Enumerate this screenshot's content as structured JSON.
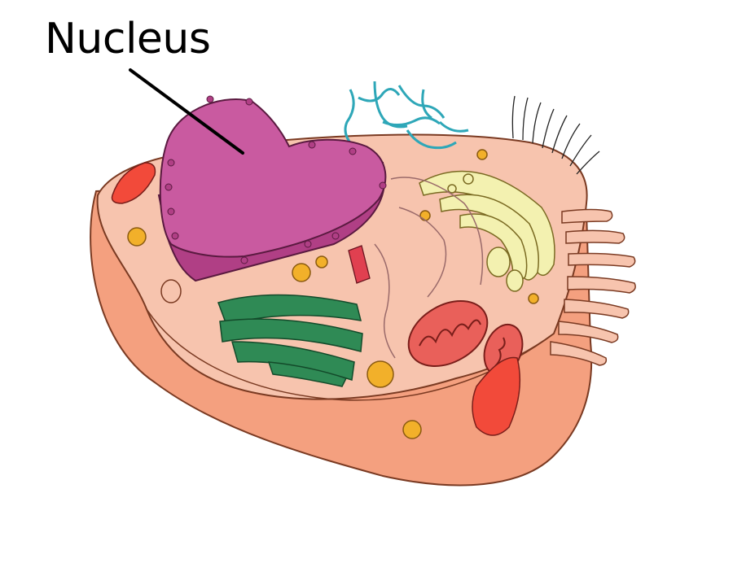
{
  "diagram": {
    "labels": {
      "nucleus": "Nucleus"
    }
  },
  "colors": {
    "cytoplasm": "#f7c4ae",
    "membrane": "#f4a07f",
    "membrane_dark": "#e8845f",
    "nucleus": "#c95aa0",
    "nucleus_dark": "#b03f85",
    "er_green": "#2f8a55",
    "golgi": "#f3f1b0",
    "mitochondrion": "#e9605a",
    "cilia_blue": "#2ea7b8",
    "vesicle": "#f2b02a",
    "leader_line": "#000000"
  }
}
